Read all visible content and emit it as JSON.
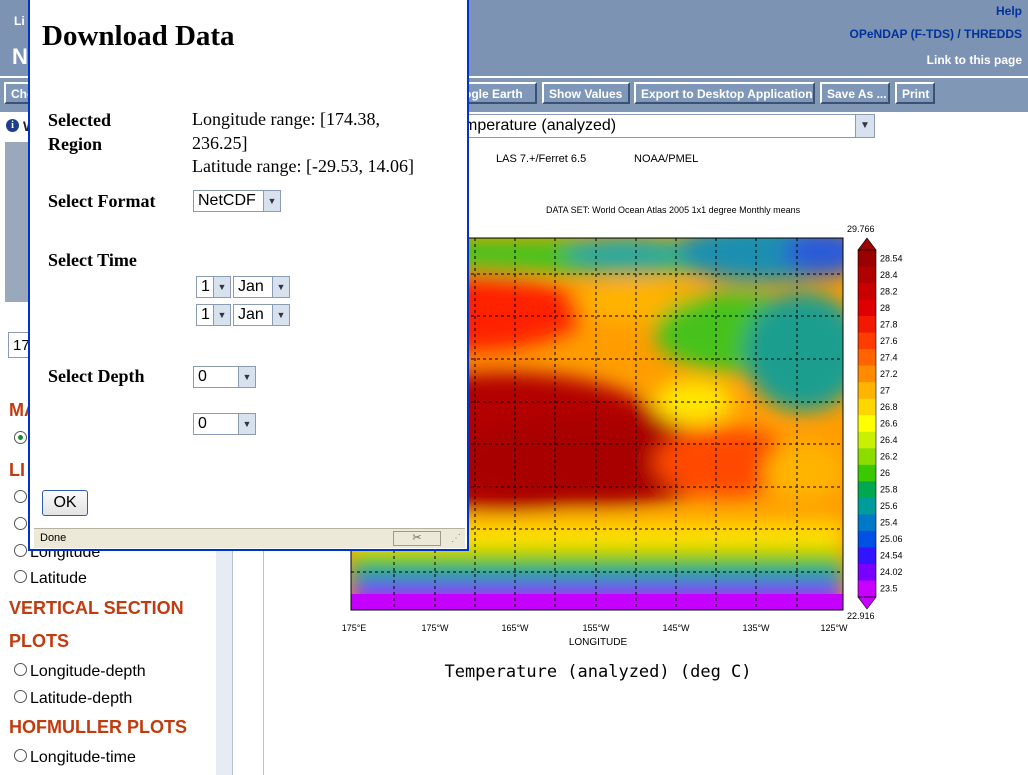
{
  "header": {
    "live_text": "Li",
    "big_text": "N",
    "help": "Help",
    "opendap": "OPeNDAP (F-TDS) / THREDDS",
    "link_to_page": "Link to this page"
  },
  "toolbar": {
    "choose_partial": "Cho",
    "google_earth": "ogle Earth",
    "show_values": "Show Values",
    "export": "Export to Desktop Application",
    "save_as": "Save As ...",
    "print": "Print"
  },
  "variable_select": {
    "value": "mperature (analyzed)",
    "info_partial": "W"
  },
  "sidebar": {
    "input_value": "17",
    "sections": [
      {
        "label": "MA"
      },
      {
        "label": "LI"
      },
      {
        "label": "VERTICAL SECTION"
      },
      {
        "label": "PLOTS"
      },
      {
        "label": "HOFMULLER PLOTS"
      }
    ],
    "options": [
      {
        "label": "Longitude"
      },
      {
        "label": "Latitude"
      },
      {
        "label": "Longitude-depth"
      },
      {
        "label": "Latitude-depth"
      },
      {
        "label": "Longitude-time"
      }
    ]
  },
  "plot": {
    "las_label": "LAS 7.+/Ferret 6.5",
    "noaa_label": "NOAA/PMEL",
    "dataset": "DATA SET: World Ocean Atlas 2005 1x1 degree Monthly means",
    "x_ticks": [
      "175°E",
      "175°W",
      "165°W",
      "155°W",
      "145°W",
      "135°W",
      "125°W"
    ],
    "xlabel": "LONGITUDE",
    "caption": "Temperature (analyzed) (deg C)",
    "colorbar_max": "29.766",
    "colorbar_min": "22.916",
    "colorbar_levels": [
      "28.54",
      "28.4",
      "28.2",
      "28",
      "27.8",
      "27.6",
      "27.4",
      "27.2",
      "27",
      "26.8",
      "26.6",
      "26.4",
      "26.2",
      "26",
      "25.8",
      "25.6",
      "25.4",
      "25.06",
      "24.54",
      "24.02",
      "23.5"
    ],
    "colorbar_colors": [
      "#9b0000",
      "#b00000",
      "#c80000",
      "#de0000",
      "#f11a00",
      "#ff3c00",
      "#ff6400",
      "#ff8c00",
      "#ffb400",
      "#ffd700",
      "#ffff00",
      "#c8f000",
      "#8cdc00",
      "#3cc800",
      "#00a850",
      "#009c9c",
      "#0078c8",
      "#0050e6",
      "#3214ff",
      "#7800ff",
      "#c800ff"
    ]
  },
  "dialog": {
    "title": "Download Data",
    "selected_region_label_1": "Selected",
    "selected_region_label_2": "Region",
    "lon_range_1": "Longitude range: [174.38,",
    "lon_range_2": "236.25]",
    "lat_range": "Latitude range: [-29.53, 14.06]",
    "select_format_label": "Select Format",
    "format_value": "NetCDF",
    "select_time_label": "Select Time",
    "time_start_day": "1",
    "time_start_month": "Jan",
    "time_end_day": "1",
    "time_end_month": "Jan",
    "select_depth_label": "Select Depth",
    "depth_start": "0",
    "depth_end": "0",
    "ok": "OK",
    "status": "Done"
  }
}
